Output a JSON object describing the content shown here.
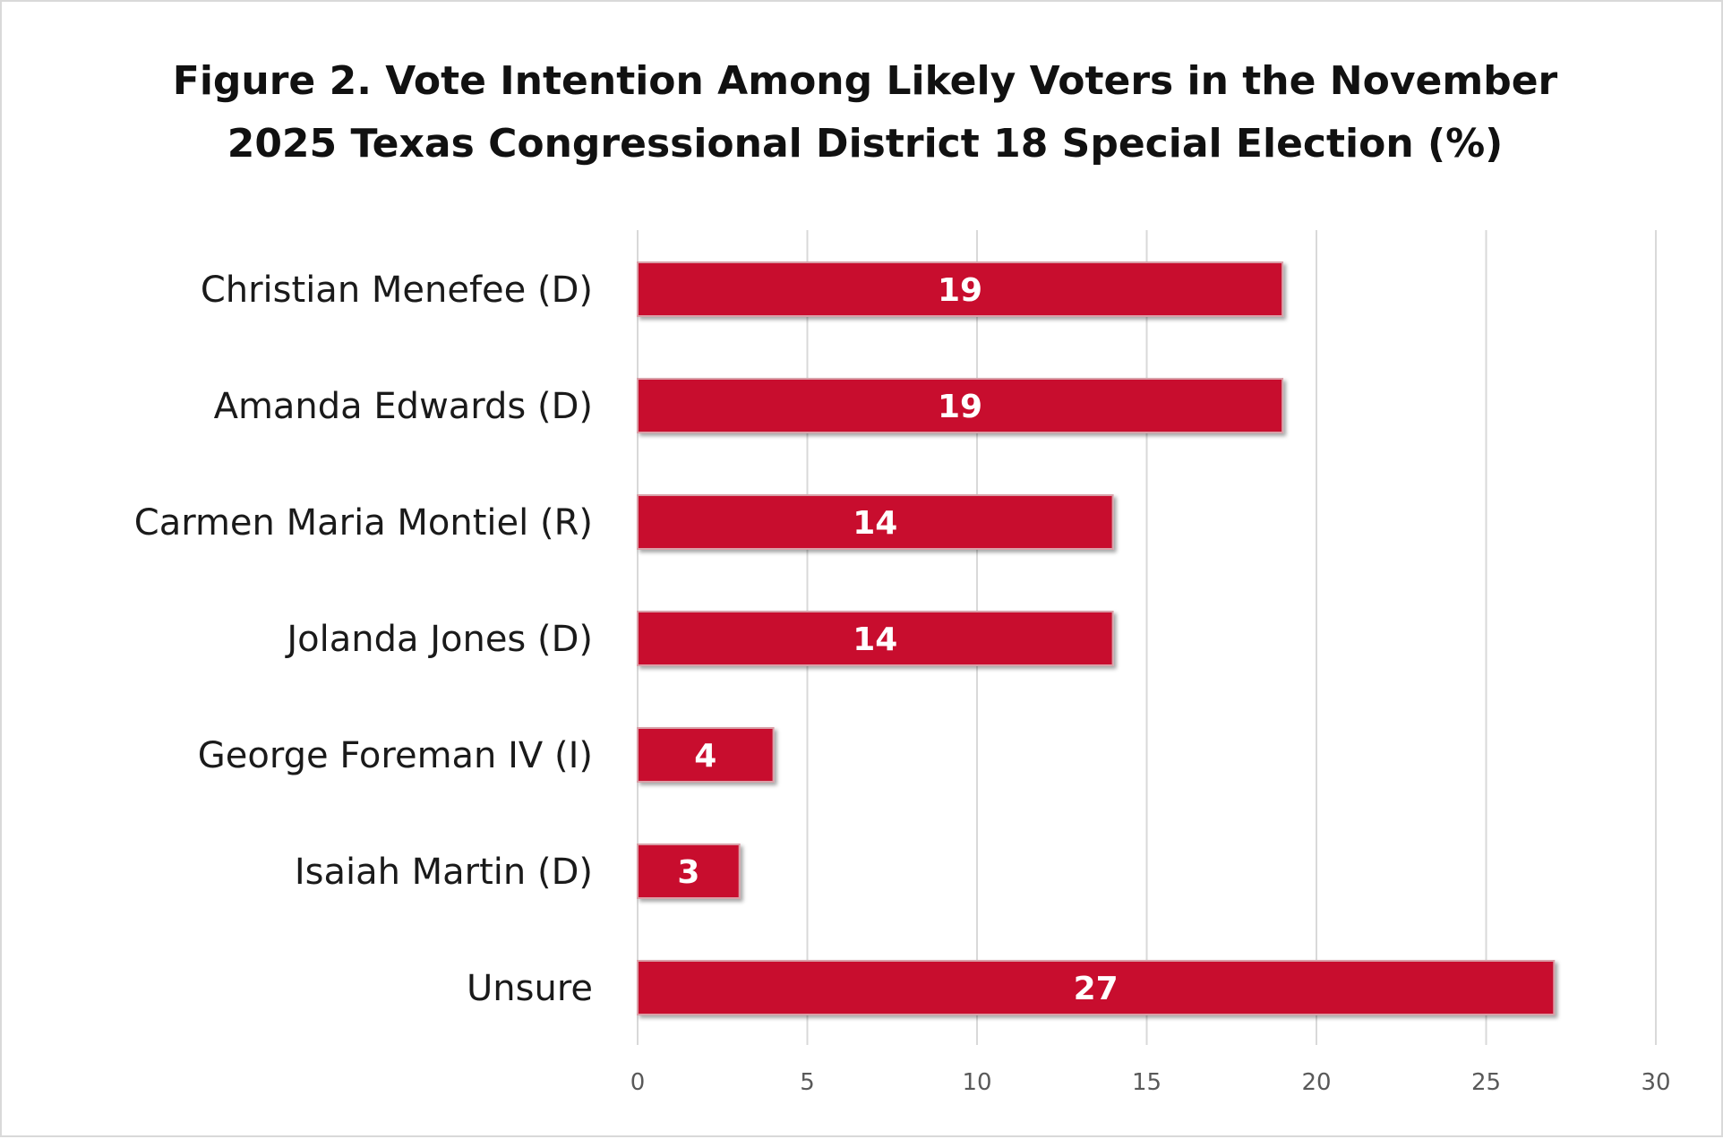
{
  "chart_data": {
    "type": "bar",
    "orientation": "horizontal",
    "title_lines": [
      "Figure 2. Vote Intention Among Likely Voters in the November",
      "2025 Texas Congressional District 18 Special Election (%)"
    ],
    "categories": [
      "Christian Menefee (D)",
      "Amanda Edwards (D)",
      "Carmen Maria Montiel (R)",
      "Jolanda Jones (D)",
      "George Foreman IV (I)",
      "Isaiah Martin (D)",
      "Unsure"
    ],
    "values": [
      19,
      19,
      14,
      14,
      4,
      3,
      27
    ],
    "data_labels": [
      "19",
      "19",
      "14",
      "14",
      "4",
      "3",
      "27"
    ],
    "xlim": [
      0,
      30
    ],
    "x_ticks": [
      0,
      5,
      10,
      15,
      20,
      25,
      30
    ],
    "x_tick_labels": [
      "0",
      "5",
      "10",
      "15",
      "20",
      "25",
      "30"
    ],
    "gridlines": "vertical",
    "legend": "none",
    "bar_color": "#c8102e",
    "gridline_color": "#d9d9d9",
    "frame_color": "#d9d9d9"
  }
}
